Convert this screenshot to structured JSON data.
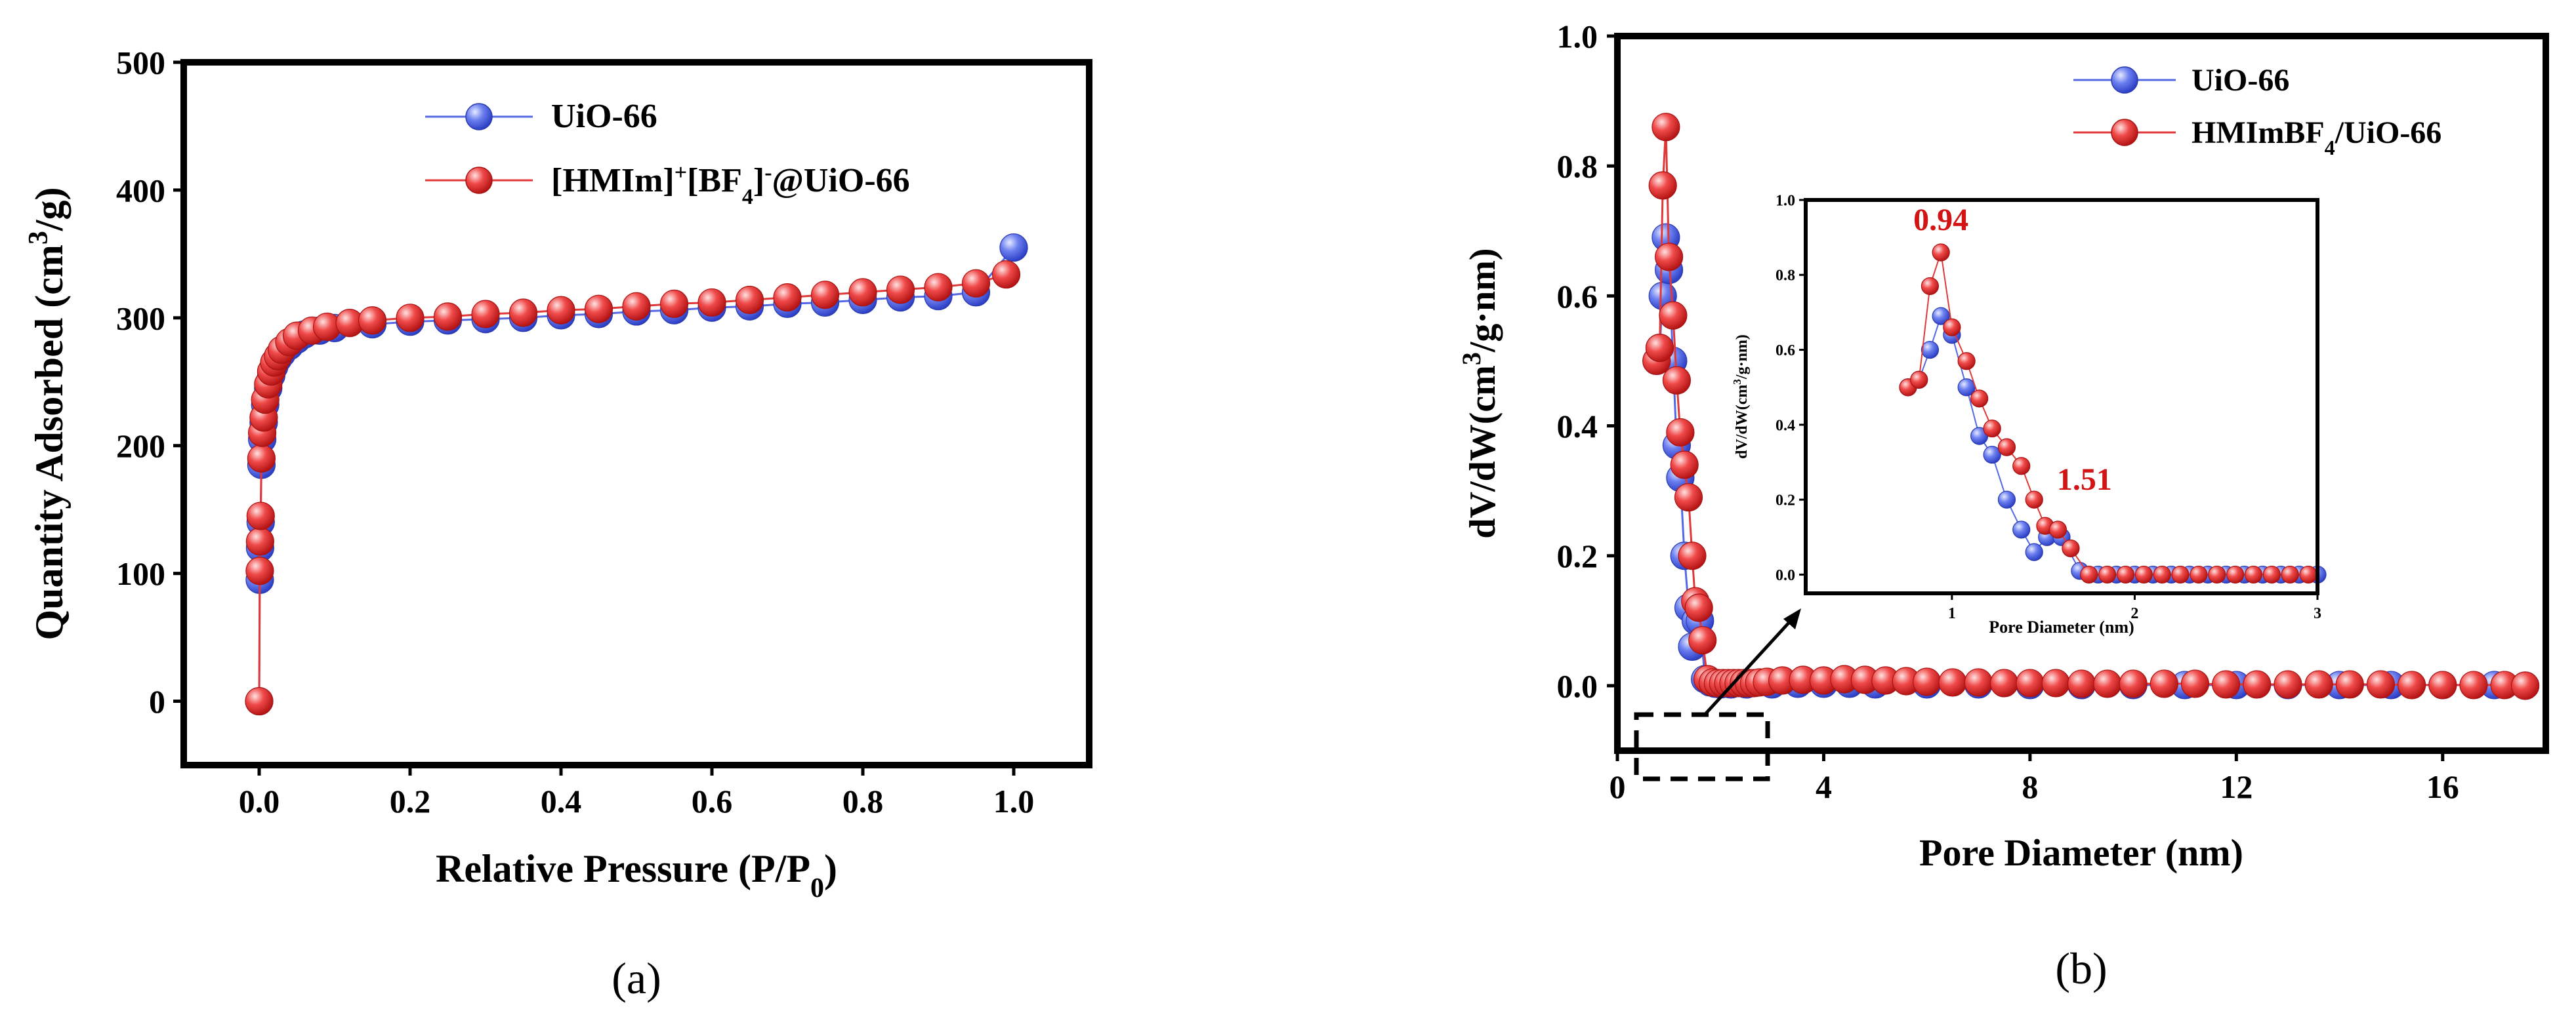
{
  "colors": {
    "uio66": "#5468e6",
    "ionic": "#e03838",
    "annotation": "#d21414",
    "axis": "#000000"
  },
  "chart_data": [
    {
      "id": "a",
      "type": "scatter",
      "panel_label": "(a)",
      "xlabel_main": "Relative Pressure (P/P",
      "xlabel_sub": "0",
      "xlabel_close": ")",
      "ylabel_main": "Quantity Adsorbed (cm",
      "ylabel_sup": "3",
      "ylabel_close": "/g)",
      "xlim": [
        -0.1,
        1.1
      ],
      "ylim": [
        -50,
        500
      ],
      "xticks": [
        0.0,
        0.2,
        0.4,
        0.6,
        0.8,
        1.0
      ],
      "xtick_labels": [
        "0.0",
        "0.2",
        "0.4",
        "0.6",
        "0.8",
        "1.0"
      ],
      "yticks": [
        0,
        100,
        200,
        300,
        400,
        500
      ],
      "ytick_labels": [
        "0",
        "100",
        "200",
        "300",
        "400",
        "500"
      ],
      "legend_position": "top-center",
      "legend": {
        "uio66": "UiO-66",
        "ionic_a": "[HMIm]",
        "ionic_sup1": "+",
        "ionic_b": "[BF",
        "ionic_sub": "4",
        "ionic_c": "]",
        "ionic_sup2": "-",
        "ionic_d": "@UiO-66"
      },
      "series": [
        {
          "name": "UiO-66",
          "x": [
            0.0,
            0.0008,
            0.0012,
            0.002,
            0.003,
            0.004,
            0.006,
            0.008,
            0.012,
            0.016,
            0.02,
            0.025,
            0.03,
            0.04,
            0.05,
            0.06,
            0.08,
            0.1,
            0.15,
            0.2,
            0.25,
            0.3,
            0.35,
            0.4,
            0.45,
            0.5,
            0.55,
            0.6,
            0.65,
            0.7,
            0.75,
            0.8,
            0.85,
            0.9,
            0.95,
            1.0
          ],
          "y": [
            0,
            95,
            120,
            140,
            185,
            205,
            218,
            232,
            245,
            255,
            262,
            268,
            272,
            278,
            283,
            287,
            290,
            292,
            295,
            297,
            298,
            299,
            300,
            302,
            303,
            305,
            306,
            308,
            309,
            311,
            312,
            314,
            316,
            317,
            320,
            355
          ]
        },
        {
          "name": "[HMIm]+[BF4]-@UiO-66",
          "x": [
            0.0,
            0.0008,
            0.0012,
            0.002,
            0.003,
            0.004,
            0.006,
            0.008,
            0.012,
            0.016,
            0.02,
            0.025,
            0.03,
            0.04,
            0.05,
            0.07,
            0.09,
            0.12,
            0.15,
            0.2,
            0.25,
            0.3,
            0.35,
            0.4,
            0.45,
            0.5,
            0.55,
            0.6,
            0.65,
            0.7,
            0.75,
            0.8,
            0.85,
            0.9,
            0.95,
            0.99
          ],
          "y": [
            0,
            102,
            125,
            145,
            190,
            210,
            222,
            236,
            248,
            258,
            265,
            270,
            275,
            281,
            286,
            290,
            293,
            296,
            298,
            300,
            301,
            303,
            304,
            306,
            307,
            309,
            311,
            312,
            314,
            316,
            318,
            320,
            322,
            324,
            327,
            334
          ]
        }
      ]
    },
    {
      "id": "b",
      "type": "line",
      "panel_label": "(b)",
      "xlabel": "Pore Diameter (nm)",
      "ylabel_main": "dV/dW(cm",
      "ylabel_sup": "3",
      "ylabel_close": "/g·nm)",
      "xlim": [
        0,
        18
      ],
      "ylim": [
        -0.1,
        1.0
      ],
      "xticks": [
        0,
        4,
        8,
        12,
        16
      ],
      "xtick_labels": [
        "0",
        "4",
        "8",
        "12",
        "16"
      ],
      "yticks": [
        0.0,
        0.2,
        0.4,
        0.6,
        0.8,
        1.0
      ],
      "ytick_labels": [
        "0.0",
        "0.2",
        "0.4",
        "0.6",
        "0.8",
        "1.0"
      ],
      "legend_position": "top-right",
      "legend": {
        "uio66": "UiO-66",
        "ionic_a": "HMImBF",
        "ionic_sub": "4",
        "ionic_b": "/UiO-66"
      },
      "series": [
        {
          "name": "UiO-66",
          "x": [
            0.76,
            0.82,
            0.88,
            0.94,
            1.0,
            1.08,
            1.15,
            1.22,
            1.3,
            1.38,
            1.45,
            1.52,
            1.6,
            1.7,
            1.8,
            1.9,
            2.0,
            2.2,
            2.5,
            3.0,
            3.5,
            4.0,
            4.5,
            5.0,
            6.0,
            7.0,
            8.0,
            9.0,
            10.0,
            11.0,
            12.0,
            13.0,
            14.0,
            15.0,
            16.0,
            17.0,
            17.6
          ],
          "y": [
            0.5,
            0.52,
            0.6,
            0.69,
            0.64,
            0.5,
            0.37,
            0.32,
            0.2,
            0.12,
            0.06,
            0.1,
            0.1,
            0.01,
            0.005,
            0.003,
            0.002,
            0.002,
            0.002,
            0.002,
            0.003,
            0.003,
            0.003,
            0.002,
            0.002,
            0.002,
            0.001,
            0.001,
            0.001,
            0.001,
            0.001,
            0.001,
            0.001,
            0.001,
            0.001,
            0.001,
            0.0
          ]
        },
        {
          "name": "HMImBF4/UiO-66",
          "x": [
            0.76,
            0.82,
            0.88,
            0.94,
            1.0,
            1.08,
            1.15,
            1.22,
            1.3,
            1.38,
            1.45,
            1.51,
            1.58,
            1.65,
            1.75,
            1.85,
            1.95,
            2.05,
            2.15,
            2.25,
            2.35,
            2.45,
            2.55,
            2.65,
            2.75,
            2.9,
            3.2,
            3.6,
            4.0,
            4.4,
            4.8,
            5.2,
            5.6,
            6.0,
            6.5,
            7.0,
            7.5,
            8.0,
            8.5,
            9.0,
            9.5,
            10.0,
            10.6,
            11.2,
            11.8,
            12.4,
            13.0,
            13.6,
            14.2,
            14.8,
            15.4,
            16.0,
            16.6,
            17.2,
            17.6
          ],
          "y": [
            0.5,
            0.52,
            0.77,
            0.86,
            0.66,
            0.57,
            0.47,
            0.39,
            0.34,
            0.29,
            0.2,
            0.13,
            0.12,
            0.07,
            0.01,
            0.005,
            0.004,
            0.004,
            0.004,
            0.004,
            0.004,
            0.004,
            0.004,
            0.004,
            0.005,
            0.006,
            0.008,
            0.009,
            0.008,
            0.01,
            0.009,
            0.008,
            0.007,
            0.006,
            0.005,
            0.005,
            0.004,
            0.004,
            0.004,
            0.003,
            0.003,
            0.003,
            0.003,
            0.003,
            0.002,
            0.002,
            0.002,
            0.002,
            0.002,
            0.002,
            0.001,
            0.001,
            0.001,
            0.001,
            0.0
          ]
        }
      ],
      "inset": {
        "xlabel": "Pore Diameter (nm)",
        "ylabel_main": "dV/dW(cm",
        "ylabel_sup": "3",
        "ylabel_close": "/g·nm)",
        "xlim": [
          0.2,
          3.0
        ],
        "ylim": [
          -0.05,
          1.0
        ],
        "xticks": [
          1,
          2,
          3
        ],
        "xtick_labels": [
          "1",
          "2",
          "3"
        ],
        "yticks": [
          0.0,
          0.2,
          0.4,
          0.6,
          0.8,
          1.0
        ],
        "ytick_labels": [
          "0.0",
          "0.2",
          "0.4",
          "0.6",
          "0.8",
          "1.0"
        ],
        "annotations": [
          {
            "text": "0.94",
            "x": 0.94,
            "y": 0.86
          },
          {
            "text": "1.51",
            "x": 1.51,
            "y": 0.13
          }
        ],
        "zoom_region": {
          "x": [
            0.3,
            3.0
          ],
          "y": [
            -0.1,
            0.0
          ]
        },
        "series": [
          {
            "name": "UiO-66",
            "x": [
              0.76,
              0.82,
              0.88,
              0.94,
              1.0,
              1.08,
              1.15,
              1.22,
              1.3,
              1.38,
              1.45,
              1.52,
              1.6,
              1.7,
              1.8,
              1.9,
              2.0,
              2.1,
              2.2,
              2.3,
              2.4,
              2.5,
              2.6,
              2.7,
              2.8,
              2.9,
              3.0
            ],
            "y": [
              0.5,
              0.52,
              0.6,
              0.69,
              0.64,
              0.5,
              0.37,
              0.32,
              0.2,
              0.12,
              0.06,
              0.1,
              0.1,
              0.01,
              0.0,
              0.0,
              0.0,
              0.0,
              0.0,
              0.0,
              0.0,
              0.0,
              0.0,
              0.0,
              0.0,
              0.0,
              0.0
            ]
          },
          {
            "name": "HMImBF4/UiO-66",
            "x": [
              0.76,
              0.82,
              0.88,
              0.94,
              1.0,
              1.08,
              1.15,
              1.22,
              1.3,
              1.38,
              1.45,
              1.51,
              1.58,
              1.65,
              1.75,
              1.85,
              1.95,
              2.05,
              2.15,
              2.25,
              2.35,
              2.45,
              2.55,
              2.65,
              2.75,
              2.85,
              2.95
            ],
            "y": [
              0.5,
              0.52,
              0.77,
              0.86,
              0.66,
              0.57,
              0.47,
              0.39,
              0.34,
              0.29,
              0.2,
              0.13,
              0.12,
              0.07,
              0.0,
              0.0,
              0.0,
              0.0,
              0.0,
              0.0,
              0.0,
              0.0,
              0.0,
              0.0,
              0.0,
              0.0,
              0.0
            ]
          }
        ]
      }
    }
  ]
}
